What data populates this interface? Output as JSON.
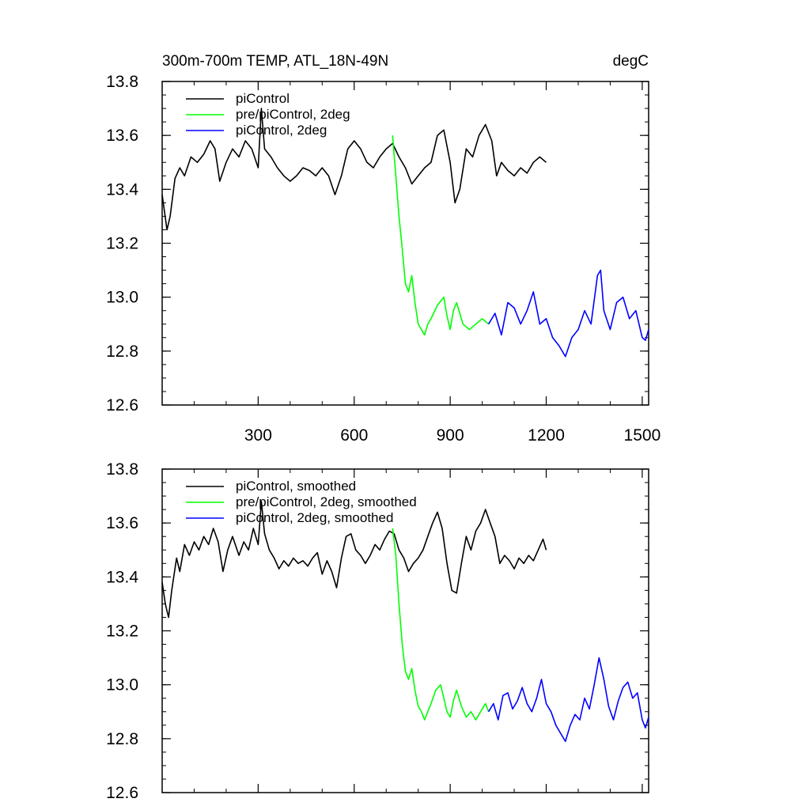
{
  "chart_data": [
    {
      "type": "line",
      "title_left": "300m-700m TEMP, ATL_18N-49N",
      "title_right": "degC",
      "xlabel": "",
      "ylabel": "",
      "xlim": [
        0,
        1520
      ],
      "ylim": [
        12.6,
        13.8
      ],
      "xticks": [
        300,
        600,
        900,
        1200,
        1500
      ],
      "yticks": [
        12.6,
        12.8,
        13.0,
        13.2,
        13.4,
        13.6,
        13.8
      ],
      "ytick_labels": [
        "12.6",
        "12.8",
        "13.0",
        "13.2",
        "13.4",
        "13.6",
        "13.8"
      ],
      "xtick_labels": [
        "300",
        "600",
        "900",
        "1200",
        "1500"
      ],
      "legend_position": "top-left",
      "series": [
        {
          "name": "piControl",
          "color": "#000000",
          "x": [
            0,
            15,
            25,
            40,
            55,
            70,
            90,
            110,
            130,
            150,
            165,
            180,
            200,
            220,
            240,
            260,
            280,
            300,
            310,
            320,
            340,
            360,
            380,
            400,
            420,
            440,
            460,
            480,
            500,
            520,
            540,
            560,
            580,
            600,
            620,
            640,
            660,
            680,
            700,
            720,
            740,
            760,
            780,
            800,
            820,
            840,
            860,
            880,
            900,
            915,
            930,
            950,
            970,
            990,
            1010,
            1030,
            1045,
            1060,
            1080,
            1100,
            1120,
            1140,
            1160,
            1180,
            1200
          ],
          "values": [
            13.38,
            13.25,
            13.3,
            13.44,
            13.48,
            13.45,
            13.52,
            13.5,
            13.53,
            13.58,
            13.55,
            13.43,
            13.5,
            13.55,
            13.52,
            13.58,
            13.55,
            13.48,
            13.7,
            13.55,
            13.52,
            13.48,
            13.45,
            13.43,
            13.45,
            13.48,
            13.47,
            13.45,
            13.48,
            13.45,
            13.38,
            13.45,
            13.55,
            13.58,
            13.55,
            13.5,
            13.48,
            13.52,
            13.55,
            13.57,
            13.52,
            13.48,
            13.42,
            13.45,
            13.48,
            13.5,
            13.6,
            13.62,
            13.5,
            13.35,
            13.4,
            13.55,
            13.52,
            13.6,
            13.64,
            13.58,
            13.45,
            13.5,
            13.47,
            13.45,
            13.48,
            13.46,
            13.5,
            13.52,
            13.5
          ]
        },
        {
          "name": "pre/piControl, 2deg",
          "color": "#00ff00",
          "x": [
            720,
            730,
            740,
            750,
            760,
            770,
            780,
            790,
            800,
            810,
            820,
            830,
            840,
            860,
            880,
            890,
            900,
            910,
            920,
            940,
            960,
            980,
            1000,
            1020
          ],
          "values": [
            13.6,
            13.45,
            13.3,
            13.18,
            13.05,
            13.02,
            13.08,
            12.98,
            12.9,
            12.88,
            12.86,
            12.9,
            12.92,
            12.97,
            13.0,
            12.93,
            12.88,
            12.95,
            12.98,
            12.9,
            12.88,
            12.9,
            12.92,
            12.9
          ]
        },
        {
          "name": "piControl, 2deg",
          "color": "#0000ff",
          "x": [
            1020,
            1040,
            1060,
            1080,
            1100,
            1120,
            1140,
            1160,
            1180,
            1200,
            1220,
            1240,
            1260,
            1280,
            1300,
            1320,
            1340,
            1360,
            1370,
            1380,
            1400,
            1420,
            1440,
            1460,
            1480,
            1500,
            1510,
            1520
          ],
          "values": [
            12.9,
            12.94,
            12.86,
            12.98,
            12.96,
            12.9,
            12.95,
            13.02,
            12.9,
            12.92,
            12.85,
            12.82,
            12.78,
            12.85,
            12.88,
            12.95,
            12.9,
            13.08,
            13.1,
            12.95,
            12.88,
            12.98,
            13.0,
            12.92,
            12.95,
            12.85,
            12.84,
            12.88
          ]
        }
      ]
    },
    {
      "type": "line",
      "xlabel": "",
      "ylabel": "",
      "xlim": [
        0,
        1520
      ],
      "ylim": [
        12.6,
        13.8
      ],
      "yticks": [
        12.6,
        12.8,
        13.0,
        13.2,
        13.4,
        13.6,
        13.8
      ],
      "ytick_labels": [
        "12.6",
        "12.8",
        "13.0",
        "13.2",
        "13.4",
        "13.6",
        "13.8"
      ],
      "legend_position": "top-left",
      "series": [
        {
          "name": "piControl, smoothed",
          "color": "#000000",
          "x": [
            0,
            10,
            20,
            30,
            45,
            55,
            70,
            85,
            100,
            115,
            130,
            145,
            160,
            175,
            190,
            205,
            220,
            240,
            255,
            270,
            285,
            300,
            310,
            320,
            335,
            350,
            365,
            380,
            395,
            410,
            425,
            440,
            455,
            470,
            485,
            500,
            515,
            530,
            545,
            560,
            575,
            590,
            605,
            620,
            635,
            650,
            665,
            680,
            695,
            710,
            725,
            740,
            755,
            770,
            785,
            800,
            815,
            830,
            845,
            860,
            875,
            890,
            905,
            920,
            935,
            950,
            965,
            980,
            995,
            1010,
            1025,
            1040,
            1055,
            1070,
            1085,
            1100,
            1115,
            1130,
            1145,
            1160,
            1175,
            1190,
            1200
          ],
          "values": [
            13.38,
            13.3,
            13.25,
            13.35,
            13.47,
            13.42,
            13.52,
            13.48,
            13.53,
            13.5,
            13.55,
            13.52,
            13.58,
            13.53,
            13.42,
            13.5,
            13.55,
            13.48,
            13.53,
            13.5,
            13.58,
            13.52,
            13.68,
            13.56,
            13.5,
            13.47,
            13.43,
            13.46,
            13.44,
            13.47,
            13.45,
            13.46,
            13.44,
            13.47,
            13.49,
            13.41,
            13.46,
            13.42,
            13.36,
            13.47,
            13.55,
            13.56,
            13.5,
            13.48,
            13.45,
            13.48,
            13.52,
            13.5,
            13.54,
            13.57,
            13.56,
            13.5,
            13.47,
            13.42,
            13.45,
            13.47,
            13.5,
            13.55,
            13.6,
            13.64,
            13.58,
            13.45,
            13.35,
            13.34,
            13.45,
            13.55,
            13.5,
            13.57,
            13.6,
            13.65,
            13.6,
            13.55,
            13.45,
            13.48,
            13.46,
            13.43,
            13.47,
            13.45,
            13.48,
            13.46,
            13.5,
            13.54,
            13.5
          ]
        },
        {
          "name": "pre/piControl, 2deg, smoothed",
          "color": "#00ff00",
          "x": [
            720,
            730,
            740,
            750,
            760,
            770,
            780,
            790,
            800,
            810,
            820,
            830,
            840,
            855,
            870,
            880,
            890,
            900,
            910,
            920,
            935,
            950,
            965,
            980,
            995,
            1010,
            1020
          ],
          "values": [
            13.58,
            13.48,
            13.3,
            13.15,
            13.05,
            13.02,
            13.06,
            12.98,
            12.92,
            12.9,
            12.87,
            12.9,
            12.93,
            12.98,
            13.0,
            12.95,
            12.9,
            12.88,
            12.94,
            12.98,
            12.92,
            12.88,
            12.9,
            12.87,
            12.9,
            12.93,
            12.9
          ]
        },
        {
          "name": "piControl, 2deg, smoothed",
          "color": "#0000ff",
          "x": [
            1020,
            1035,
            1050,
            1065,
            1080,
            1095,
            1110,
            1125,
            1140,
            1155,
            1170,
            1185,
            1200,
            1215,
            1230,
            1245,
            1260,
            1275,
            1290,
            1305,
            1320,
            1335,
            1350,
            1365,
            1380,
            1395,
            1410,
            1425,
            1440,
            1455,
            1470,
            1485,
            1500,
            1510,
            1520
          ],
          "values": [
            12.9,
            12.93,
            12.87,
            12.96,
            12.97,
            12.91,
            12.94,
            12.99,
            12.93,
            12.9,
            12.95,
            13.02,
            12.93,
            12.9,
            12.85,
            12.82,
            12.79,
            12.85,
            12.89,
            12.87,
            12.95,
            12.91,
            13.0,
            13.1,
            13.02,
            12.92,
            12.87,
            12.94,
            12.99,
            13.01,
            12.95,
            12.97,
            12.87,
            12.84,
            12.88
          ]
        }
      ]
    }
  ]
}
